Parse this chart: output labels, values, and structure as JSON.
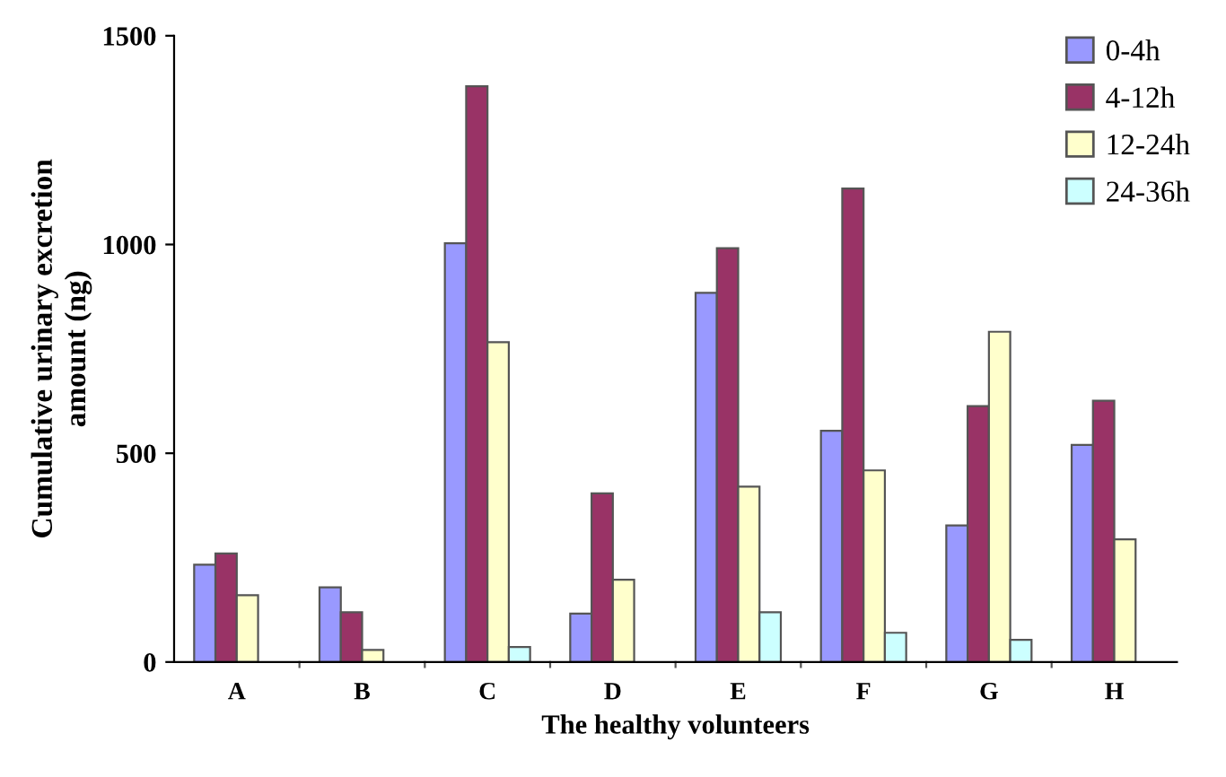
{
  "chart_data": {
    "type": "bar",
    "xlabel": "The healthy volunteers",
    "ylabel": "Cumulative urinary excretion\namount (ng)",
    "categories": [
      "A",
      "B",
      "C",
      "D",
      "E",
      "F",
      "G",
      "H"
    ],
    "series": [
      {
        "name": "0-4h",
        "color": "#9999ff",
        "values": [
          233,
          179,
          1003,
          116,
          884,
          554,
          327,
          520
        ]
      },
      {
        "name": "4-12h",
        "color": "#993366",
        "values": [
          260,
          119,
          1379,
          404,
          991,
          1134,
          613,
          626
        ]
      },
      {
        "name": "12-24h",
        "color": "#ffffcc",
        "values": [
          160,
          29,
          766,
          197,
          420,
          459,
          791,
          294
        ]
      },
      {
        "name": "24-36h",
        "color": "#ccffff",
        "values": [
          null,
          null,
          36,
          null,
          119,
          70,
          53,
          null
        ]
      }
    ],
    "ylim": [
      0,
      1500
    ],
    "yticks": [
      0,
      500,
      1000,
      1500
    ],
    "grid": false,
    "legend": "top right"
  }
}
